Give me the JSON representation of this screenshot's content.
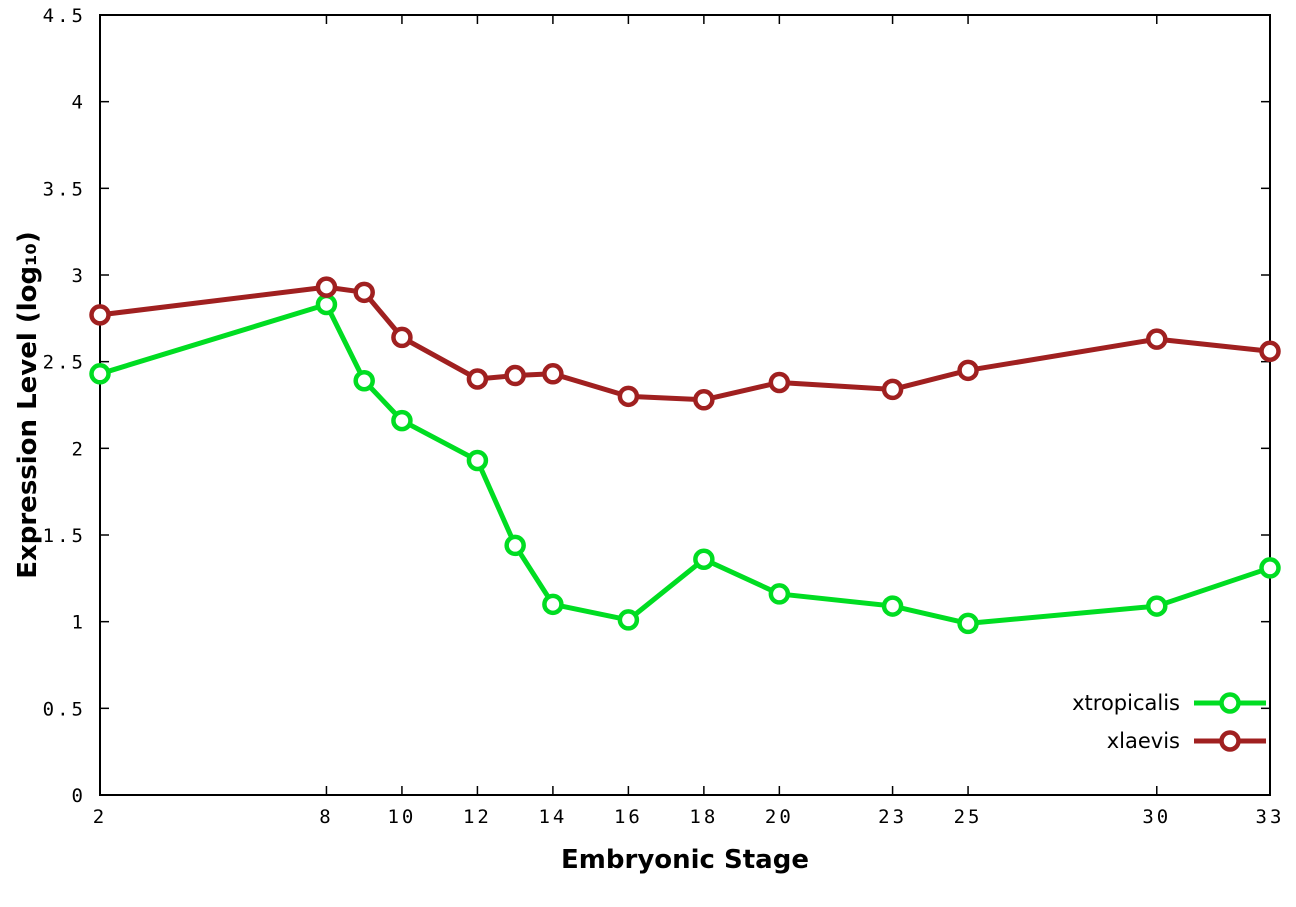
{
  "chart_data": {
    "type": "line",
    "title": "",
    "xlabel": "Embryonic Stage",
    "ylabel": "Expression Level (log₁₀)",
    "x": [
      2,
      8,
      9,
      10,
      12,
      13,
      14,
      16,
      18,
      20,
      23,
      25,
      30,
      33
    ],
    "xticks": [
      2,
      8,
      10,
      12,
      14,
      16,
      18,
      20,
      23,
      25,
      30,
      33
    ],
    "yticks": [
      0,
      0.5,
      1,
      1.5,
      2,
      2.5,
      3,
      3.5,
      4,
      4.5
    ],
    "xlim": [
      2,
      33
    ],
    "ylim": [
      0,
      4.5
    ],
    "grid": false,
    "legend_position": "inside-bottom-right",
    "marker": "open-circle",
    "axis_color": "#000000",
    "background_color": "#ffffff",
    "series": [
      {
        "name": "xtropicalis",
        "color": "#00dd22",
        "values": [
          2.43,
          2.83,
          2.39,
          2.16,
          1.93,
          1.44,
          1.1,
          1.01,
          1.36,
          1.16,
          1.09,
          0.99,
          1.09,
          1.31
        ]
      },
      {
        "name": "xlaevis",
        "color": "#a02020",
        "values": [
          2.77,
          2.93,
          2.9,
          2.64,
          2.4,
          2.42,
          2.43,
          2.3,
          2.28,
          2.38,
          2.34,
          2.45,
          2.63,
          2.56
        ]
      }
    ]
  }
}
